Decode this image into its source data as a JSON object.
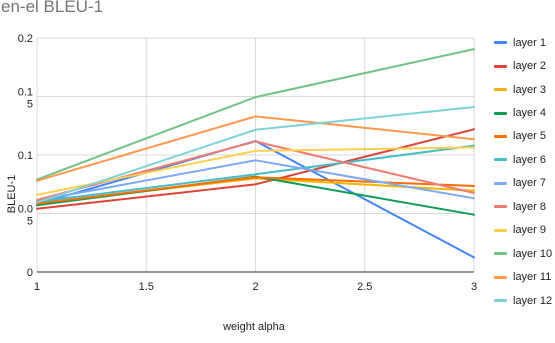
{
  "chart_data": {
    "type": "line",
    "title": "en-el BLEU-1",
    "xlabel": "weight alpha",
    "ylabel": "BLEU-1",
    "x": [
      1,
      2,
      3
    ],
    "xlim": [
      1,
      3
    ],
    "ylim": [
      0,
      0.2
    ],
    "x_ticks": [
      "1",
      "1.5",
      "2",
      "2.5",
      "3"
    ],
    "y_ticks": [
      {
        "value": 0,
        "line1": "0",
        "line2": ""
      },
      {
        "value": 0.05,
        "line1": "0.0",
        "line2": "5"
      },
      {
        "value": 0.1,
        "line1": "0.1",
        "line2": ""
      },
      {
        "value": 0.15,
        "line1": "0.1",
        "line2": "5"
      },
      {
        "value": 0.2,
        "line1": "0.2",
        "line2": ""
      }
    ],
    "grid": true,
    "legend_position": "right",
    "series": [
      {
        "name": "layer 1",
        "color": "#4285f4",
        "values": [
          0.058,
          0.112,
          0.0125
        ]
      },
      {
        "name": "layer 2",
        "color": "#db4437",
        "values": [
          0.054,
          0.075,
          0.122
        ]
      },
      {
        "name": "layer 3",
        "color": "#f4b400",
        "values": [
          0.0585,
          0.08,
          0.0695
        ]
      },
      {
        "name": "layer 4",
        "color": "#0f9d58",
        "values": [
          0.057,
          0.0815,
          0.049
        ]
      },
      {
        "name": "layer 5",
        "color": "#ff6d00",
        "values": [
          0.0585,
          0.081,
          0.0735
        ]
      },
      {
        "name": "layer 6",
        "color": "#46bdc6",
        "values": [
          0.06,
          0.0835,
          0.108
        ]
      },
      {
        "name": "layer 7",
        "color": "#7baaf7",
        "values": [
          0.061,
          0.0955,
          0.063
        ]
      },
      {
        "name": "layer 8",
        "color": "#f07b72",
        "values": [
          0.0615,
          0.1115,
          0.0675
        ]
      },
      {
        "name": "layer 9",
        "color": "#fcd04f",
        "values": [
          0.066,
          0.1035,
          0.1065
        ]
      },
      {
        "name": "layer 10",
        "color": "#71c287",
        "values": [
          0.079,
          0.1495,
          0.1905
        ]
      },
      {
        "name": "layer 11",
        "color": "#ff994d",
        "values": [
          0.078,
          0.133,
          0.1135
        ]
      },
      {
        "name": "layer 12",
        "color": "#7ed1d7",
        "values": [
          0.0595,
          0.1215,
          0.141
        ]
      }
    ]
  }
}
